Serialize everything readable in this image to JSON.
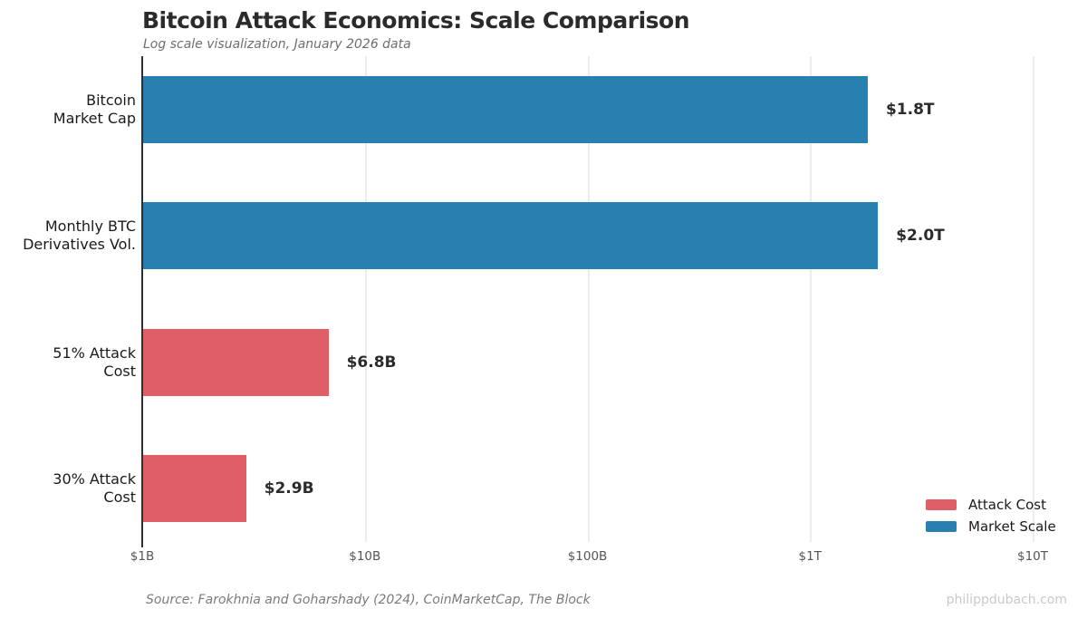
{
  "chart_data": {
    "type": "bar",
    "orientation": "horizontal",
    "x_scale": "log",
    "title": "Bitcoin Attack Economics: Scale Comparison",
    "subtitle": "Log scale visualization, January 2026 data",
    "xlim_billions": [
      1,
      10000
    ],
    "grid": "vertical-only",
    "legend_position": "bottom-right",
    "rows": [
      {
        "label_line1": "Bitcoin",
        "label_line2": "Market Cap",
        "value_billions": 1800,
        "value_label": "$1.8T",
        "series": "Market Scale"
      },
      {
        "label_line1": "Monthly BTC",
        "label_line2": "Derivatives Vol.",
        "value_billions": 2000,
        "value_label": "$2.0T",
        "series": "Market Scale"
      },
      {
        "label_line1": "51% Attack",
        "label_line2": "Cost",
        "value_billions": 6.8,
        "value_label": "$6.8B",
        "series": "Attack Cost"
      },
      {
        "label_line1": "30% Attack",
        "label_line2": "Cost",
        "value_billions": 2.9,
        "value_label": "$2.9B",
        "series": "Attack Cost"
      }
    ],
    "x_ticks": [
      {
        "label": "$1B",
        "value_billions": 1
      },
      {
        "label": "$10B",
        "value_billions": 10
      },
      {
        "label": "$100B",
        "value_billions": 100
      },
      {
        "label": "$1T",
        "value_billions": 1000
      },
      {
        "label": "$10T",
        "value_billions": 10000
      }
    ],
    "legend": [
      {
        "label": "Attack Cost",
        "color": "#e05f66"
      },
      {
        "label": "Market Scale",
        "color": "#2880b0"
      }
    ]
  },
  "colors": {
    "attack": "#e05f66",
    "market": "#2880b0",
    "grid": "#ececec",
    "axis": "#2f2f2f"
  },
  "footer": {
    "source": "Source: Farokhnia and Goharshady (2024), CoinMarketCap, The Block",
    "watermark": "philippdubach.com"
  }
}
